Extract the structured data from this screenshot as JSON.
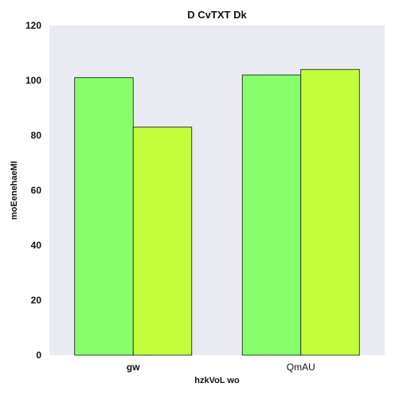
{
  "chart_data": {
    "type": "bar",
    "title": "D CvTXT Dk",
    "xlabel": "hzkVoL wo",
    "ylabel": "moEenehaeMI",
    "categories": [
      "gw",
      "QmAU"
    ],
    "series": [
      {
        "values": [
          101,
          102
        ],
        "color": "#88ff6a"
      },
      {
        "values": [
          83,
          104
        ],
        "color": "#c2ff3a"
      }
    ],
    "ylim": [
      0,
      120
    ],
    "yticks": [
      0,
      20,
      40,
      60,
      80,
      100,
      120
    ],
    "grid": false,
    "plot_background": "#eaeaf2"
  }
}
